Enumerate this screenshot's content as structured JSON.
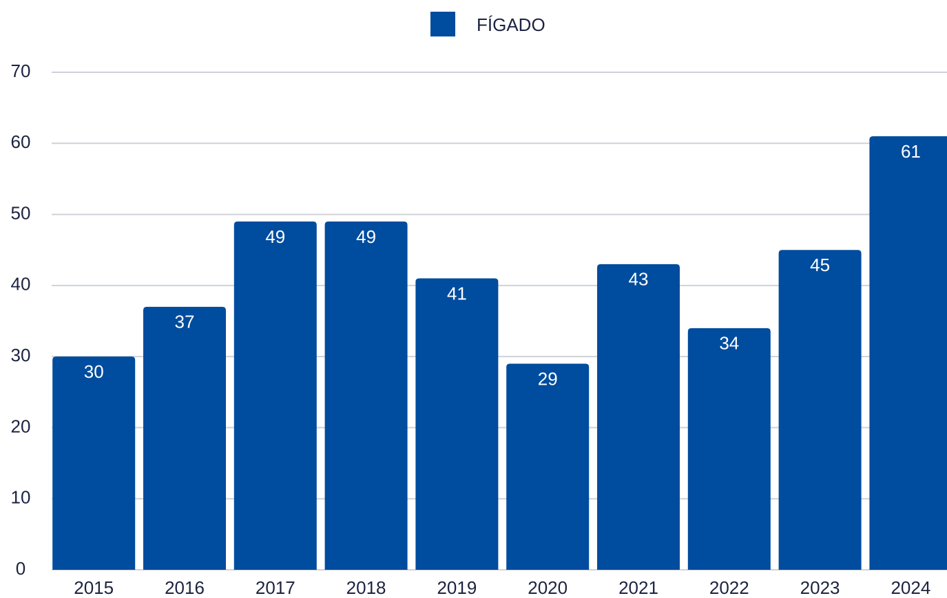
{
  "chart_data": {
    "type": "bar",
    "categories": [
      "2015",
      "2016",
      "2017",
      "2018",
      "2019",
      "2020",
      "2021",
      "2022",
      "2023",
      "2024"
    ],
    "series": [
      {
        "name": "FÍGADO",
        "color": "#004c9e",
        "values": [
          30,
          37,
          49,
          49,
          41,
          29,
          43,
          34,
          45,
          61
        ]
      }
    ],
    "ylim": [
      0,
      70
    ],
    "yticks": [
      0,
      10,
      20,
      30,
      40,
      50,
      60,
      70
    ],
    "grid": true,
    "legend": "top"
  }
}
